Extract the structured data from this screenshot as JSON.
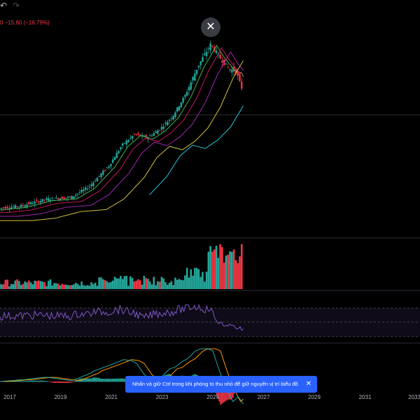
{
  "toolbar": {
    "undo_icon": "undo-icon",
    "redo_icon": "redo-icon"
  },
  "header": {
    "price_change": "0 −15.60 (−16.79%)"
  },
  "close_button": {
    "icon": "close-icon",
    "label": "✕"
  },
  "toast": {
    "message": "Nhấn và giữ Ctrl trong khi phóng to thu nhỏ để giữ nguyên vị trí biểu đồ",
    "close_label": "✕"
  },
  "colors": {
    "up": "#26a69a",
    "down": "#f23645",
    "ma_short": "#4caf50",
    "ma_mid": "#c2185b",
    "ma_long": "#9c27b0",
    "ma_200": "#d4c13b",
    "ma_cyan": "#26c6da",
    "rsi": "#7e57c2",
    "macd": "#2962ff",
    "signal": "#ff9800",
    "accent": "#2962ff"
  },
  "chart_data": {
    "type": "candlestick",
    "x_axis": {
      "tick_labels": [
        "2017",
        "2019",
        "2021",
        "2023",
        "2025",
        "2027",
        "2029",
        "2031",
        "2033"
      ]
    },
    "y_axis": {
      "scale": "log"
    },
    "price": {
      "points": [
        {
          "year": 2016.6,
          "close": 1.0
        },
        {
          "year": 2017.5,
          "close": 1.05
        },
        {
          "year": 2018.5,
          "close": 1.2
        },
        {
          "year": 2019.5,
          "close": 1.25
        },
        {
          "year": 2020.2,
          "close": 1.55
        },
        {
          "year": 2021.0,
          "close": 2.4
        },
        {
          "year": 2021.5,
          "close": 3.6
        },
        {
          "year": 2022.0,
          "close": 4.5
        },
        {
          "year": 2022.5,
          "close": 4.2
        },
        {
          "year": 2023.0,
          "close": 5.0
        },
        {
          "year": 2023.5,
          "close": 6.5
        },
        {
          "year": 2024.0,
          "close": 10.0
        },
        {
          "year": 2024.5,
          "close": 18.0
        },
        {
          "year": 2025.0,
          "close": 28.0
        },
        {
          "year": 2025.3,
          "close": 22.0
        },
        {
          "year": 2025.7,
          "close": 17.0
        },
        {
          "year": 2026.0,
          "close": 16.0
        },
        {
          "year": 2026.2,
          "close": 11.5
        }
      ]
    },
    "panes": [
      "price",
      "volume",
      "rsi",
      "macd"
    ],
    "grid": false,
    "legend": "none"
  }
}
